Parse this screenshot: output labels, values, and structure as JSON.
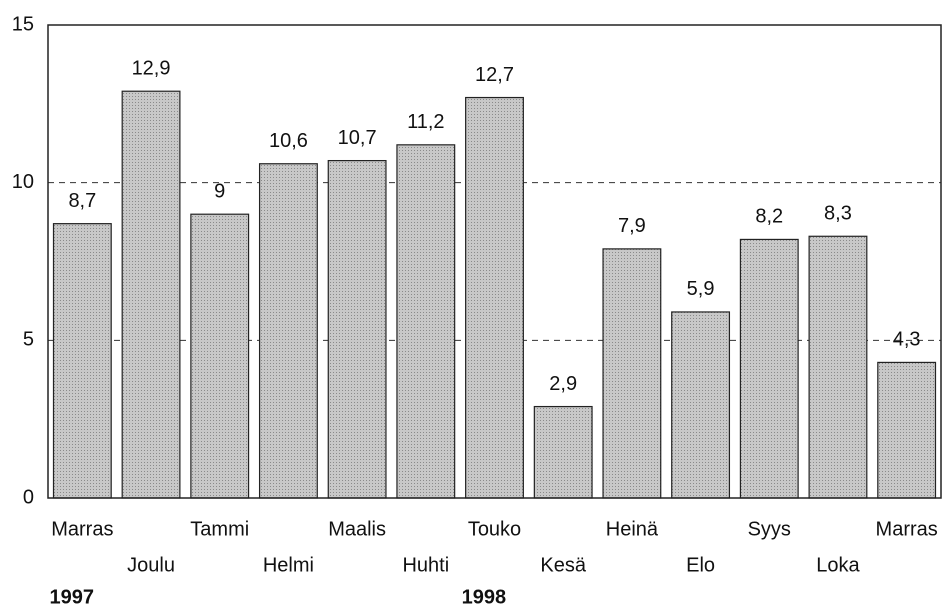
{
  "chart_data": {
    "type": "bar",
    "categories": [
      "Marras",
      "Joulu",
      "Tammi",
      "Helmi",
      "Maalis",
      "Huhti",
      "Touko",
      "Kesä",
      "Heinä",
      "Elo",
      "Syys",
      "Loka",
      "Marras"
    ],
    "year_labels": [
      "1997",
      null,
      null,
      null,
      null,
      null,
      "1998",
      null,
      null,
      null,
      null,
      null,
      null
    ],
    "values": [
      8.7,
      12.9,
      9,
      10.6,
      10.7,
      11.2,
      12.7,
      2.9,
      7.9,
      5.9,
      8.2,
      8.3,
      4.3
    ],
    "value_labels": [
      "8,7",
      "12,9",
      "9",
      "10,6",
      "10,7",
      "11,2",
      "12,7",
      "2,9",
      "7,9",
      "5,9",
      "8,2",
      "8,3",
      "4,3"
    ],
    "color": "#bdbdbd",
    "ylim": [
      0,
      15
    ],
    "yticks": [
      0,
      5,
      10,
      15
    ],
    "grid": true
  }
}
